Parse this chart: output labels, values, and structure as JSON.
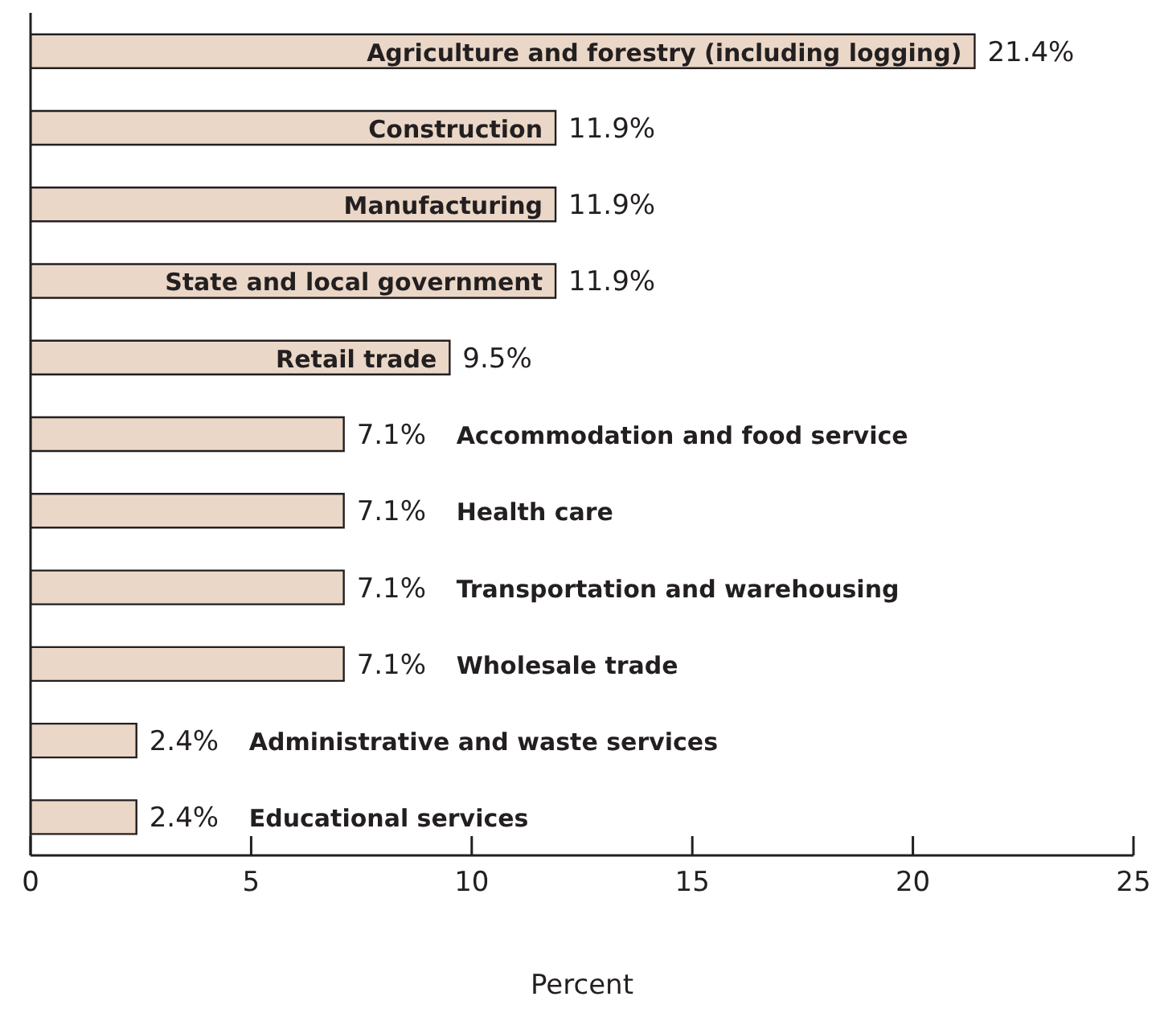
{
  "chart_data": {
    "type": "bar",
    "orientation": "horizontal",
    "xlabel": "Percent",
    "categories": [
      "Agriculture and forestry (including logging)",
      "Construction",
      "Manufacturing",
      "State and local government",
      "Retail trade",
      "Accommodation and food service",
      "Health care",
      "Transportation and warehousing",
      "Wholesale trade",
      "Administrative and waste services",
      "Educational services"
    ],
    "values": [
      21.4,
      11.9,
      11.9,
      11.9,
      9.5,
      7.1,
      7.1,
      7.1,
      7.1,
      2.4,
      2.4
    ],
    "value_labels": [
      "21.4%",
      "11.9%",
      "11.9%",
      "11.9%",
      "9.5%",
      "7.1%",
      "7.1%",
      "7.1%",
      "7.1%",
      "2.4%",
      "2.4%"
    ],
    "color": "#ead7c7",
    "xlim": [
      0,
      25
    ],
    "xticks": [
      0,
      5,
      10,
      15,
      20,
      25
    ],
    "grid": false,
    "legend": false
  }
}
